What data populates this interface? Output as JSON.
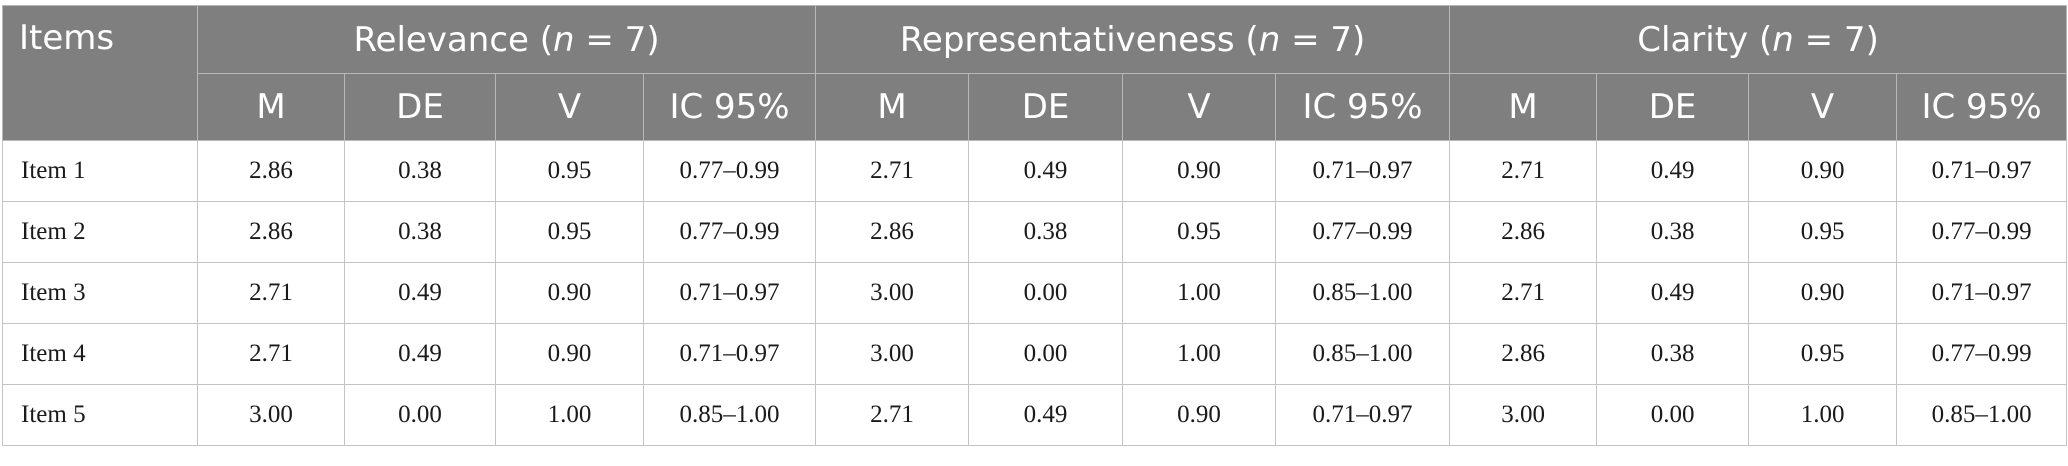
{
  "header": {
    "items_label": "Items",
    "groups": [
      {
        "label": "Relevance",
        "n_var": "n",
        "n_eq": " = 7"
      },
      {
        "label": "Representativeness",
        "n_var": "n",
        "n_eq": " = 7"
      },
      {
        "label": "Clarity",
        "n_var": "n",
        "n_eq": " = 7"
      }
    ],
    "subcolumns": [
      "M",
      "DE",
      "V",
      "IC 95%"
    ]
  },
  "rows": [
    {
      "item": "Item 1",
      "values": [
        "2.86",
        "0.38",
        "0.95",
        "0.77–0.99",
        "2.71",
        "0.49",
        "0.90",
        "0.71–0.97",
        "2.71",
        "0.49",
        "0.90",
        "0.71–0.97"
      ]
    },
    {
      "item": "Item 2",
      "values": [
        "2.86",
        "0.38",
        "0.95",
        "0.77–0.99",
        "2.86",
        "0.38",
        "0.95",
        "0.77–0.99",
        "2.86",
        "0.38",
        "0.95",
        "0.77–0.99"
      ]
    },
    {
      "item": "Item 3",
      "values": [
        "2.71",
        "0.49",
        "0.90",
        "0.71–0.97",
        "3.00",
        "0.00",
        "1.00",
        "0.85–1.00",
        "2.71",
        "0.49",
        "0.90",
        "0.71–0.97"
      ]
    },
    {
      "item": "Item 4",
      "values": [
        "2.71",
        "0.49",
        "0.90",
        "0.71–0.97",
        "3.00",
        "0.00",
        "1.00",
        "0.85–1.00",
        "2.86",
        "0.38",
        "0.95",
        "0.77–0.99"
      ]
    },
    {
      "item": "Item 5",
      "values": [
        "3.00",
        "0.00",
        "1.00",
        "0.85–1.00",
        "2.71",
        "0.49",
        "0.90",
        "0.71–0.97",
        "3.00",
        "0.00",
        "1.00",
        "0.85–1.00"
      ]
    }
  ]
}
